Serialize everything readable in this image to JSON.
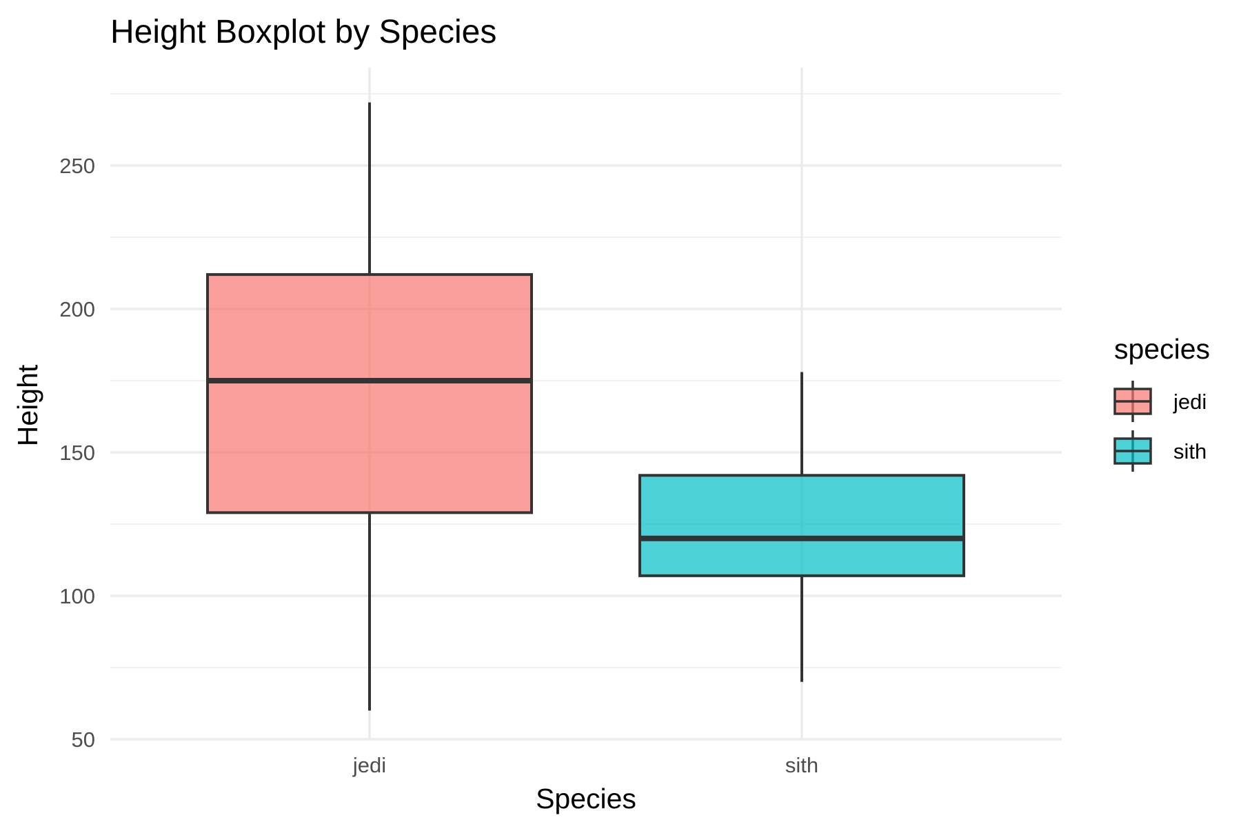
{
  "chart_data": {
    "type": "boxplot",
    "title": "Height Boxplot by Species",
    "xlabel": "Species",
    "ylabel": "Height",
    "ylim": [
      50,
      280
    ],
    "yticks": [
      50,
      100,
      150,
      200,
      250
    ],
    "yminor": [
      75,
      125,
      175,
      225,
      275
    ],
    "grid": true,
    "categories": [
      "jedi",
      "sith"
    ],
    "boxes": [
      {
        "category": "jedi",
        "min": 60,
        "q1": 129,
        "median": 175,
        "q3": 212,
        "max": 272,
        "color": "#F8766D"
      },
      {
        "category": "sith",
        "min": 70,
        "q1": 107,
        "median": 120,
        "q3": 142,
        "max": 178,
        "color": "#00BFC4"
      }
    ],
    "legend": {
      "title": "species",
      "position": "right",
      "items": [
        {
          "label": "jedi",
          "color": "#F8766D"
        },
        {
          "label": "sith",
          "color": "#00BFC4"
        }
      ]
    }
  }
}
